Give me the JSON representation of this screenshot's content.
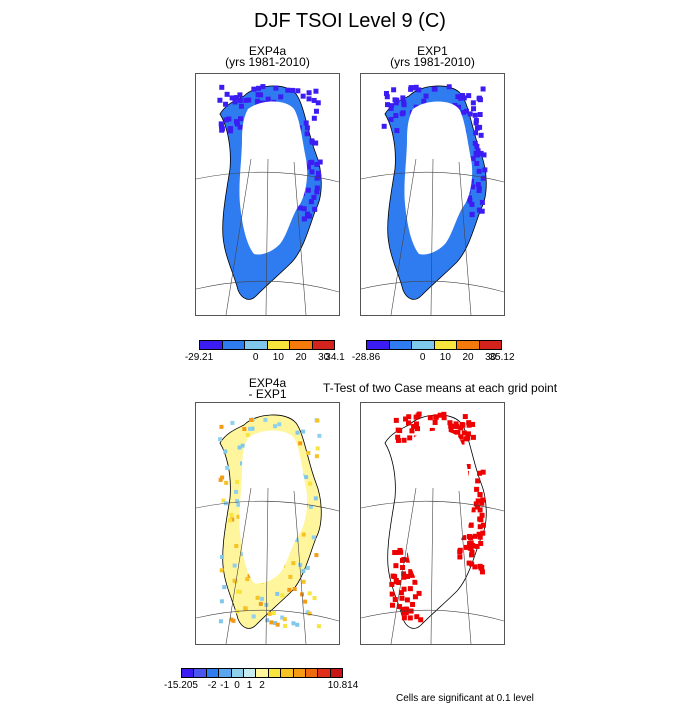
{
  "title": "DJF TSOI Level 9 (C)",
  "panels": {
    "p1": {
      "line1": "EXP4a",
      "line2": "(yrs 1981-2010)"
    },
    "p2": {
      "line1": "EXP1",
      "line2": "(yrs 1981-2010)"
    },
    "p3": {
      "line1": "EXP4a",
      "line2": "- EXP1"
    },
    "p4": {
      "line1": "T-Test of two Case means at each grid point"
    }
  },
  "colorbars": {
    "cb1": {
      "labels": [
        "-29.21",
        "0",
        "10",
        "20",
        "30",
        "34.1"
      ],
      "colors": [
        "#3b1cf2",
        "#2f7cf0",
        "#7fc8ec",
        "#f7e43c",
        "#f47a0c",
        "#d4231c"
      ]
    },
    "cb2": {
      "labels": [
        "-28.86",
        "0",
        "10",
        "20",
        "30",
        "35.12"
      ],
      "colors": [
        "#3b1cf2",
        "#2f7cf0",
        "#7fc8ec",
        "#f7e43c",
        "#f47a0c",
        "#d4231c"
      ]
    },
    "cb3": {
      "labels": [
        "-15.205",
        "-2",
        "-1",
        "0",
        "1",
        "2",
        "10.814"
      ],
      "colors": [
        "#3b1cf2",
        "#4a55ee",
        "#2f7cf0",
        "#5aa6ee",
        "#8fd0ec",
        "#c6ecf2",
        "#fff59c",
        "#f7e43c",
        "#f7c224",
        "#f49a14",
        "#ee6a10",
        "#e0301a",
        "#c81616"
      ]
    }
  },
  "footnote": "Cells are significant at 0.1 level",
  "colors": {
    "cold": "#3b1cf2",
    "mid": "#2f7cf0",
    "diffwarm": "#f7c224",
    "diffpale": "#fff59c",
    "diffcool": "#8fd0ec",
    "sig": "#ee0000"
  }
}
